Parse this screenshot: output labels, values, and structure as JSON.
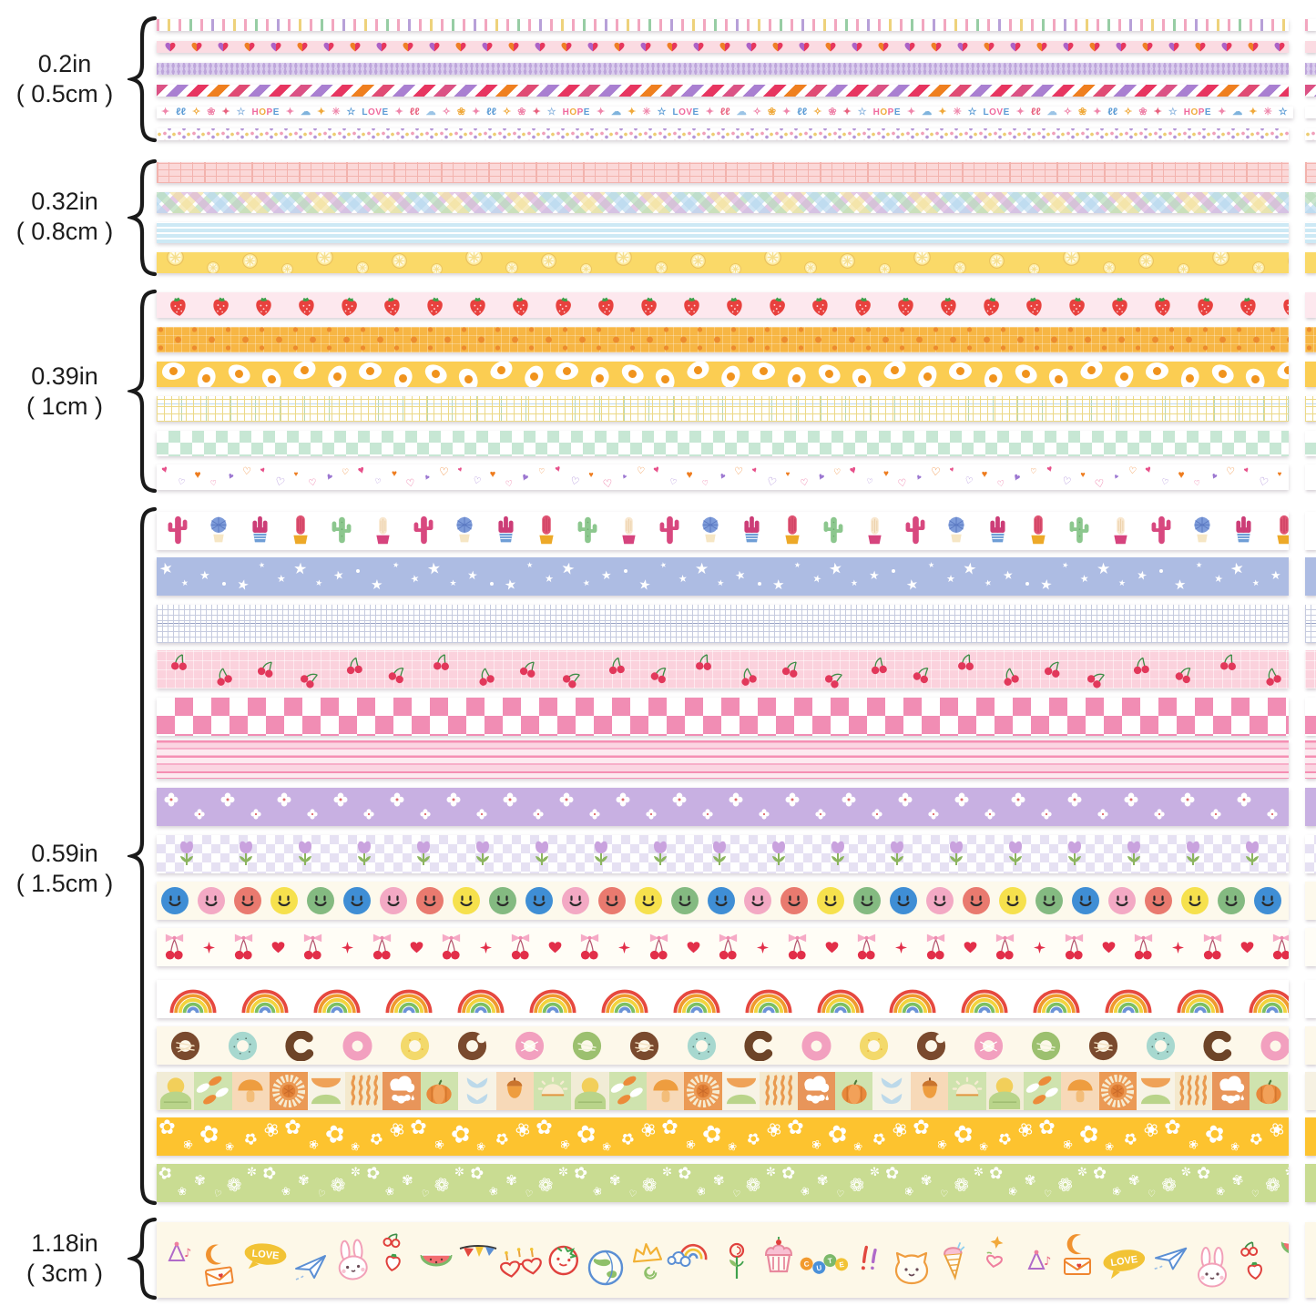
{
  "canvas": {
    "background": "#ffffff",
    "bracket_color": "#1a1a1a",
    "text_color": "#1d1d1d"
  },
  "groups": [
    {
      "size_label": {
        "inches": "0.2in",
        "cm": "( 0.5cm )"
      },
      "strips": [
        {
          "name": "candy-tick-stripes",
          "pattern": "vticks",
          "bg": "#ffffff",
          "colors": [
            "#f2a6bf",
            "#eed27b",
            "#f2a6bf",
            "#97cda4",
            "#f2a6bf",
            "#b7a0d8"
          ]
        },
        {
          "name": "duotone-hearts",
          "pattern": "hearts2",
          "bg": "#fbdbe2",
          "colors": [
            "#ad62c6",
            "#ef7f26",
            "#e7375d"
          ]
        },
        {
          "name": "purple-herringbone",
          "pattern": "herringbone",
          "bg": "#bea6db",
          "colors": [
            "#dacdee"
          ]
        },
        {
          "name": "diagonal-candy-stripes",
          "pattern": "diag",
          "bg": "#ffffff",
          "colors": [
            "#db5285",
            "#a97fd1",
            "#e73560",
            "#ef7f1f",
            "#e04b74",
            "#a97fd1",
            "#e73560"
          ]
        },
        {
          "name": "hope-love-doodle-text",
          "pattern": "dtext",
          "bg": "#ffffff",
          "tokens": [
            {
              "t": "✦",
              "c": "#ef86ab"
            },
            {
              "t": "ℓℓ",
              "c": "#5b9bd5"
            },
            {
              "t": "✧",
              "c": "#f0a93b"
            },
            {
              "t": "❀",
              "c": "#ef86ab"
            },
            {
              "t": "✦",
              "c": "#e8627f"
            },
            {
              "t": "☆",
              "c": "#8fb7e0"
            },
            {
              "word": "HOPE",
              "colors": [
                "#ef6a9e",
                "#f0ab3c",
                "#ef6a9e",
                "#5b9bd5"
              ]
            },
            {
              "t": "✦",
              "c": "#ef86ab"
            },
            {
              "t": "☁",
              "c": "#7fb3dd"
            },
            {
              "t": "✦",
              "c": "#f0a93b"
            },
            {
              "t": "✳",
              "c": "#ef86ab"
            },
            {
              "t": "☆",
              "c": "#5b9bd5"
            },
            {
              "word": "LOVE",
              "colors": [
                "#5b9bd5",
                "#ef6a9e",
                "#ef6a9e",
                "#5b9bd5"
              ]
            },
            {
              "t": "✦",
              "c": "#ef86ab"
            },
            {
              "t": "ℓℓ",
              "c": "#e8627f"
            },
            {
              "t": "☁",
              "c": "#9bc4e6"
            },
            {
              "t": "✧",
              "c": "#ef86ab"
            },
            {
              "t": "❀",
              "c": "#f0a93b"
            }
          ]
        },
        {
          "name": "confetti-dots",
          "pattern": "dots3",
          "bg": "#ffffff",
          "colors": [
            "#f0a0bb",
            "#b697d6",
            "#edcd72"
          ]
        }
      ]
    },
    {
      "size_label": {
        "inches": "0.32in",
        "cm": "( 0.8cm )"
      },
      "strips": [
        {
          "name": "pink-grid",
          "pattern": "gridpink",
          "bg": "#fbd8d8",
          "colors": [
            "#f3b3ae",
            "#e98b7f"
          ]
        },
        {
          "name": "pastel-plaid",
          "pattern": "plaid",
          "bg": "#ffffff",
          "colors": [
            "#b9d9ef",
            "#b7dcba",
            "#f3e2a2",
            "#d9b3dc"
          ]
        },
        {
          "name": "blue-pinstripes",
          "pattern": "hstripes",
          "bg": "#cde9f5",
          "colors": [
            "#ffffff"
          ]
        },
        {
          "name": "lemon-slices",
          "pattern": "lemons",
          "bg": "#fad968",
          "colors": [
            "#fdeda2",
            "#eac25e"
          ]
        }
      ]
    },
    {
      "size_label": {
        "inches": "0.39in",
        "cm": "( 1cm )"
      },
      "strips": [
        {
          "name": "strawberries",
          "pattern": "strawb",
          "bg": "#fde8ee",
          "colors": [
            "#e8413e",
            "#3fa14c"
          ]
        },
        {
          "name": "orange-dots",
          "pattern": "oranges",
          "bg": "#f7b644",
          "colors": [
            "#ec8b2f"
          ]
        },
        {
          "name": "fried-eggs",
          "pattern": "eggs",
          "bg": "#fbcd52",
          "colors": [
            "#ffffff",
            "#f0931d"
          ]
        },
        {
          "name": "yellow-plaid",
          "pattern": "plaidthin",
          "bg": "#ffffff",
          "colors": [
            "#ecd987",
            "#bcd9ee",
            "#b8d8b0"
          ]
        },
        {
          "name": "mint-checkerboard",
          "pattern": "checker",
          "bg": "#ffffff",
          "colors": [
            "#c7e7d4"
          ],
          "cell": 13
        },
        {
          "name": "tiny-hearts-confetti",
          "pattern": "heartsconf",
          "bg": "#ffffff",
          "colors": [
            "#e7508a",
            "#9c77d1",
            "#ee7c1e"
          ]
        }
      ]
    },
    {
      "size_label": {
        "inches": "0.59in",
        "cm": "( 1.5cm )"
      },
      "strips": [
        {
          "name": "cactus-pots",
          "pattern": "cacti",
          "bg": "#ffffff",
          "colors": [
            "#d8487f",
            "#7e9cda",
            "#8cc78e",
            "#eda928"
          ]
        },
        {
          "name": "white-stars-periwinkle",
          "pattern": "stars",
          "bg": "#adbce3",
          "colors": [
            "#ffffff"
          ]
        },
        {
          "name": "graph-grid",
          "pattern": "gridfine",
          "bg": "#ffffff",
          "colors": [
            "#c6cbdf",
            "#99a3c6"
          ]
        },
        {
          "name": "cherries-on-pink",
          "pattern": "cherrypink",
          "bg": "#fbd2dd",
          "colors": [
            "#e2385b",
            "#3e8e47"
          ]
        },
        {
          "name": "pink-checkerboard",
          "pattern": "checker",
          "bg": "#ffffff",
          "colors": [
            "#f18db4"
          ],
          "cell": 20
        },
        {
          "name": "pink-pinstripes",
          "pattern": "pinkstripes",
          "bg": "#fdeaf0",
          "colors": [
            "#f58fb3",
            "#f7aec9",
            "#fbd5e2"
          ]
        },
        {
          "name": "clover-flowers-purple",
          "pattern": "cloverflowers",
          "bg": "#c8b0e2",
          "colors": [
            "#ffffff",
            "#e0696b"
          ]
        },
        {
          "name": "tulips-on-checker",
          "pattern": "tulips",
          "bg": "#ffffff",
          "colors": [
            "#e6e1f3",
            "#c9a2de",
            "#8cb55f"
          ]
        },
        {
          "name": "smiley-faces",
          "pattern": "smileys",
          "bg": "#fdf9ec",
          "colors": [
            "#3f8ed5",
            "#f3a9c4",
            "#e97a6f",
            "#f6e14d",
            "#84ba81"
          ]
        },
        {
          "name": "cherries-and-bows",
          "pattern": "cherrybow",
          "bg": "#fffdf6",
          "colors": [
            "#f6aac6",
            "#e22f49"
          ]
        },
        {
          "name": "rainbows",
          "pattern": "rainbows",
          "bg": "#ffffff",
          "colors": [
            "#e6483f",
            "#f09a2e",
            "#f2d43e",
            "#7cbf62",
            "#6b93d8"
          ]
        },
        {
          "name": "donuts",
          "pattern": "donuts",
          "bg": "#fdf8ea",
          "colors": [
            "#7a4a2e",
            "#a7d8cf",
            "#f2a0bf",
            "#f3d96b",
            "#9cc06f"
          ]
        },
        {
          "name": "autumn-geo-blocks",
          "pattern": "geoblocks",
          "bg": "#f6f1e2",
          "colors": [
            "#f1ecd6",
            "#cfe3ae",
            "#f7d9b8",
            "#eb9a55",
            "#f7f3e6",
            "#f4e9cd",
            "#e8955a"
          ]
        },
        {
          "name": "white-daisies-yellow",
          "pattern": "daisies",
          "bg": "#fdc32f",
          "colors": [
            "#ffffff"
          ]
        },
        {
          "name": "white-floral-green",
          "pattern": "greenfloral",
          "bg": "#c9dc92",
          "colors": [
            "#ffffff"
          ]
        }
      ]
    },
    {
      "size_label": {
        "inches": "1.18in",
        "cm": "( 3cm )"
      },
      "strips": [
        {
          "name": "kawaii-doodles",
          "pattern": "doodles",
          "bg": "#fdf8e8",
          "words": {
            "love_bubble": "LOVE",
            "cute": "CUTE"
          }
        }
      ]
    }
  ]
}
